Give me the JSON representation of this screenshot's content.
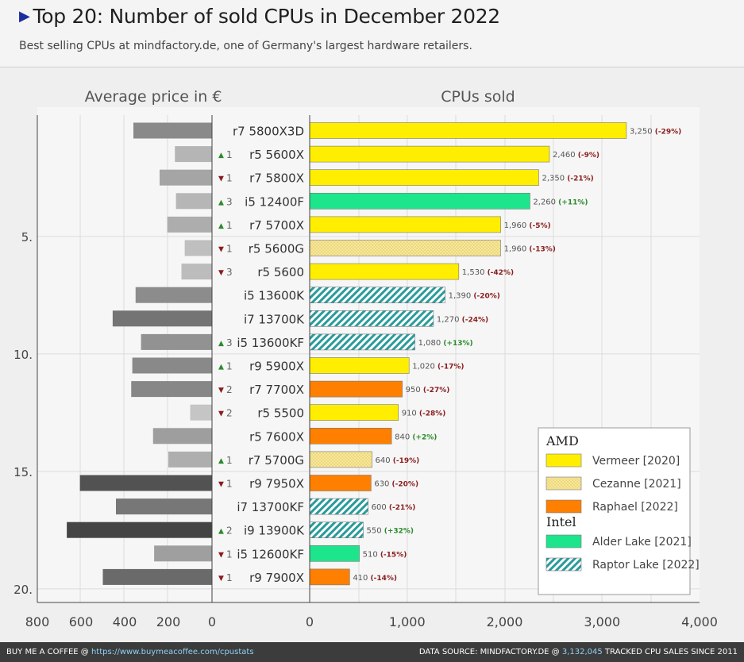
{
  "header": {
    "title": "Top 20: Number of sold CPUs  in December 2022",
    "subtitle": "Best selling CPUs at mindfactory.de, one of Germany's largest hardware retailers."
  },
  "footer": {
    "left_prefix": "BUY ME A COFFEE @ ",
    "left_link": "https://www.buymeacoffee.com/cpustats",
    "right_prefix": "DATA SOURCE: MINDFACTORY.DE @ ",
    "right_count": "3,132,045",
    "right_suffix": " TRACKED CPU SALES SINCE 2011"
  },
  "colors": {
    "vermeer": "#ffee00",
    "cezanne": "#f7e79c",
    "raphael": "#ff7f00",
    "alder_lake": "#1de58c",
    "raptor_lake": "#2a9b9b",
    "up": "#2a8a2a",
    "down": "#8b1c1c"
  },
  "chart_data": [
    {
      "type": "bar",
      "title": "CPUs sold",
      "xlim": [
        0,
        4000
      ],
      "xticks": [
        "0",
        "1,000",
        "2,000",
        "3,000",
        "4,000"
      ],
      "rank_ticks": [
        "5.",
        "10.",
        "15.",
        "20."
      ],
      "legend": {
        "placement": "bottom-right",
        "groups": [
          {
            "title": "AMD",
            "items": [
              {
                "label": "Vermeer [2020]",
                "key": "vermeer"
              },
              {
                "label": "Cezanne [2021]",
                "key": "cezanne"
              },
              {
                "label": "Raphael [2022]",
                "key": "raphael"
              }
            ]
          },
          {
            "title": "Intel",
            "items": [
              {
                "label": "Alder Lake [2021]",
                "key": "alder_lake"
              },
              {
                "label": "Raptor Lake [2022]",
                "key": "raptor_lake"
              }
            ]
          }
        ]
      },
      "rows": [
        {
          "cpu": "r7 5800X3D",
          "sold": 3250,
          "sold_label": "3,250",
          "change": "(-29%)",
          "change_dir": "down",
          "rank_move": "",
          "rank_dir": "",
          "family": "vermeer"
        },
        {
          "cpu": "r5 5600X",
          "sold": 2460,
          "sold_label": "2,460",
          "change": "(-9%)",
          "change_dir": "down",
          "rank_move": "1",
          "rank_dir": "up",
          "family": "vermeer"
        },
        {
          "cpu": "r7 5800X",
          "sold": 2350,
          "sold_label": "2,350",
          "change": "(-21%)",
          "change_dir": "down",
          "rank_move": "1",
          "rank_dir": "down",
          "family": "vermeer"
        },
        {
          "cpu": "i5 12400F",
          "sold": 2260,
          "sold_label": "2,260",
          "change": "(+11%)",
          "change_dir": "up",
          "rank_move": "3",
          "rank_dir": "up",
          "family": "alder_lake"
        },
        {
          "cpu": "r7 5700X",
          "sold": 1960,
          "sold_label": "1,960",
          "change": "(-5%)",
          "change_dir": "down",
          "rank_move": "1",
          "rank_dir": "up",
          "family": "vermeer"
        },
        {
          "cpu": "r5 5600G",
          "sold": 1960,
          "sold_label": "1,960",
          "change": "(-13%)",
          "change_dir": "down",
          "rank_move": "1",
          "rank_dir": "down",
          "family": "cezanne"
        },
        {
          "cpu": "r5 5600",
          "sold": 1530,
          "sold_label": "1,530",
          "change": "(-42%)",
          "change_dir": "down",
          "rank_move": "3",
          "rank_dir": "down",
          "family": "vermeer"
        },
        {
          "cpu": "i5 13600K",
          "sold": 1390,
          "sold_label": "1,390",
          "change": "(-20%)",
          "change_dir": "down",
          "rank_move": "",
          "rank_dir": "",
          "family": "raptor_lake"
        },
        {
          "cpu": "i7 13700K",
          "sold": 1270,
          "sold_label": "1,270",
          "change": "(-24%)",
          "change_dir": "down",
          "rank_move": "",
          "rank_dir": "",
          "family": "raptor_lake"
        },
        {
          "cpu": "i5 13600KF",
          "sold": 1080,
          "sold_label": "1,080",
          "change": "(+13%)",
          "change_dir": "up",
          "rank_move": "3",
          "rank_dir": "up",
          "family": "raptor_lake"
        },
        {
          "cpu": "r9 5900X",
          "sold": 1020,
          "sold_label": "1,020",
          "change": "(-17%)",
          "change_dir": "down",
          "rank_move": "1",
          "rank_dir": "up",
          "family": "vermeer"
        },
        {
          "cpu": "r7 7700X",
          "sold": 950,
          "sold_label": "950",
          "change": "(-27%)",
          "change_dir": "down",
          "rank_move": "2",
          "rank_dir": "down",
          "family": "raphael"
        },
        {
          "cpu": "r5 5500",
          "sold": 910,
          "sold_label": "910",
          "change": "(-28%)",
          "change_dir": "down",
          "rank_move": "2",
          "rank_dir": "down",
          "family": "vermeer"
        },
        {
          "cpu": "r5 7600X",
          "sold": 840,
          "sold_label": "840",
          "change": "(+2%)",
          "change_dir": "up",
          "rank_move": "",
          "rank_dir": "",
          "family": "raphael"
        },
        {
          "cpu": "r7 5700G",
          "sold": 640,
          "sold_label": "640",
          "change": "(-19%)",
          "change_dir": "down",
          "rank_move": "1",
          "rank_dir": "up",
          "family": "cezanne"
        },
        {
          "cpu": "r9 7950X",
          "sold": 630,
          "sold_label": "630",
          "change": "(-20%)",
          "change_dir": "down",
          "rank_move": "1",
          "rank_dir": "down",
          "family": "raphael"
        },
        {
          "cpu": "i7 13700KF",
          "sold": 600,
          "sold_label": "600",
          "change": "(-21%)",
          "change_dir": "down",
          "rank_move": "",
          "rank_dir": "",
          "family": "raptor_lake"
        },
        {
          "cpu": "i9 13900K",
          "sold": 550,
          "sold_label": "550",
          "change": "(+32%)",
          "change_dir": "up",
          "rank_move": "2",
          "rank_dir": "up",
          "family": "raptor_lake"
        },
        {
          "cpu": "i5 12600KF",
          "sold": 510,
          "sold_label": "510",
          "change": "(-15%)",
          "change_dir": "down",
          "rank_move": "1",
          "rank_dir": "down",
          "family": "alder_lake"
        },
        {
          "cpu": "r9 7900X",
          "sold": 410,
          "sold_label": "410",
          "change": "(-14%)",
          "change_dir": "down",
          "rank_move": "1",
          "rank_dir": "down",
          "family": "raphael"
        }
      ]
    },
    {
      "type": "bar",
      "title": "Average price in €",
      "xlim": [
        0,
        800
      ],
      "xticks": [
        "800",
        "600",
        "400",
        "200",
        "0"
      ],
      "categories": [
        "r7 5800X3D",
        "r5 5600X",
        "r7 5800X",
        "i5 12400F",
        "r7 5700X",
        "r5 5600G",
        "r5 5600",
        "i5 13600K",
        "i7 13700K",
        "i5 13600KF",
        "r9 5900X",
        "r7 7700X",
        "r5 5500",
        "r5 7600X",
        "r7 5700G",
        "r9 7950X",
        "i7 13700KF",
        "i9 13900K",
        "i5 12600KF",
        "r9 7900X"
      ],
      "values": [
        360,
        170,
        240,
        165,
        205,
        125,
        140,
        350,
        455,
        325,
        365,
        370,
        100,
        270,
        200,
        605,
        440,
        665,
        265,
        500
      ]
    }
  ]
}
